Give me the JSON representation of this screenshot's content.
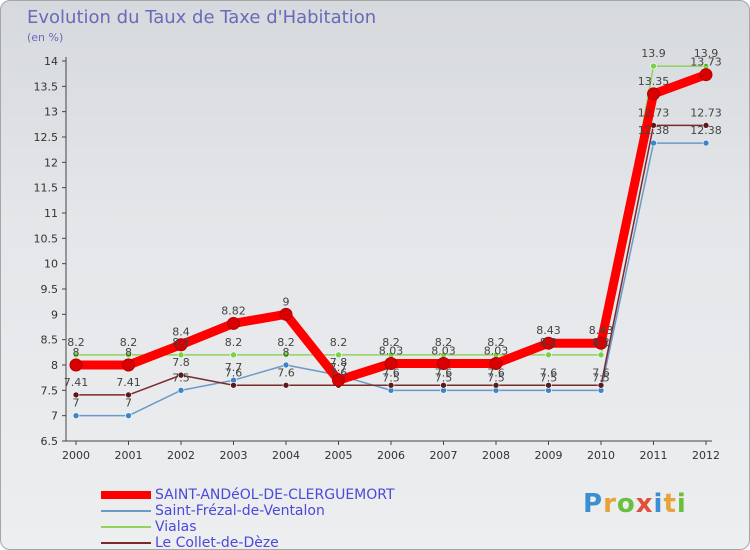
{
  "page": {
    "title": "Evolution du Taux de Taxe d'Habitation",
    "unit": "(en %)",
    "logo": "Proxiti"
  },
  "chart_data": {
    "type": "line",
    "title": "Evolution du Taux de Taxe d'Habitation",
    "ylabel": "(en %)",
    "xlabel": "",
    "ylim": [
      6.5,
      14
    ],
    "yticks": [
      6.5,
      7,
      7.5,
      8,
      8.5,
      9,
      9.5,
      10,
      10.5,
      11,
      11.5,
      12,
      12.5,
      13,
      13.5,
      14
    ],
    "ytick_labels": [
      "6.5",
      "7",
      "7.5",
      "8",
      "8.5",
      "9",
      "9.5",
      "10",
      "10.5",
      "11",
      "11.5",
      "12",
      "12.5",
      "13",
      "13.5",
      "14"
    ],
    "x": [
      "2000",
      "2001",
      "2002",
      "2003",
      "2004",
      "2005",
      "2006",
      "2007",
      "2008",
      "2009",
      "2010",
      "2011",
      "2012"
    ],
    "grid": false,
    "legend": "bottom-left",
    "series": [
      {
        "name": "SAINT-ANDéOL-DE-CLERGUEMORT",
        "color": "#ff0000",
        "marker_color": "#d80000",
        "values": [
          8,
          8,
          8.4,
          8.82,
          9,
          7.7,
          8.03,
          8.03,
          8.03,
          8.43,
          8.43,
          13.35,
          13.73
        ],
        "labels": [
          "8",
          "8",
          "8.4",
          "8.82",
          "9",
          "7.7",
          "8.03",
          "8.03",
          "8.03",
          "8.43",
          "8.43",
          "13.35",
          "13.73"
        ]
      },
      {
        "name": "Saint-Frézal-de-Ventalon",
        "color": "#6a9ac8",
        "marker_color": "#3a85c9",
        "values": [
          7,
          7,
          7.5,
          7.7,
          8,
          7.8,
          7.5,
          7.5,
          7.5,
          7.5,
          7.5,
          12.38,
          12.38
        ],
        "labels": [
          "7",
          "7",
          "7.5",
          "7.7",
          "8",
          "7.8",
          "7.5",
          "7.5",
          "7.5",
          "7.5",
          "7.5",
          "12.38",
          "12.38"
        ]
      },
      {
        "name": "Vialas",
        "color": "#8fd35a",
        "marker_color": "#7ad04a",
        "values": [
          8.2,
          8.2,
          8.2,
          8.2,
          8.2,
          8.2,
          8.2,
          8.2,
          8.2,
          8.2,
          8.2,
          13.9,
          13.9
        ],
        "labels": [
          "8.2",
          "8.2",
          "8.2",
          "8.2",
          "8.2",
          "8.2",
          "8.2",
          "8.2",
          "8.2",
          "8.2",
          "8.2",
          "13.9",
          "13.9"
        ]
      },
      {
        "name": "Le Collet-de-Dèze",
        "color": "#7a2a2a",
        "marker_color": "#5a1a1a",
        "values": [
          7.41,
          7.41,
          7.8,
          7.6,
          7.6,
          7.6,
          7.6,
          7.6,
          7.6,
          7.6,
          7.6,
          12.73,
          12.73
        ],
        "labels": [
          "7.41",
          "7.41",
          "7.8",
          "7.6",
          "7.6",
          "7.6",
          "7.6",
          "7.6",
          "7.6",
          "7.6",
          "7.6",
          "12.73",
          "12.73"
        ]
      }
    ]
  }
}
